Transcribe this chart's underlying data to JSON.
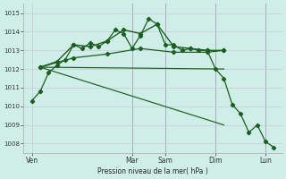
{
  "background_color": "#d0eee8",
  "grid_color": "#c8c8d8",
  "line_color": "#1a5e20",
  "ylabel": "Pression niveau de la mer( hPa )",
  "ylim": [
    1007.5,
    1015.5
  ],
  "yticks": [
    1008,
    1009,
    1010,
    1011,
    1012,
    1013,
    1014,
    1015
  ],
  "day_labels": [
    "Ven",
    "Mar",
    "Sam",
    "Dim",
    "Lun"
  ],
  "day_positions": [
    0,
    12,
    16,
    22,
    28
  ],
  "xlim": [
    -1,
    30
  ],
  "series1_x": [
    0,
    1,
    2,
    3,
    4,
    5,
    6,
    7,
    8,
    9,
    10,
    11,
    12,
    13,
    14,
    15,
    16,
    17,
    18,
    19,
    20,
    21,
    22,
    23,
    24,
    25,
    26,
    27,
    28,
    29
  ],
  "series1_y": [
    1010.3,
    1010.8,
    1011.8,
    1012.2,
    1012.5,
    1013.3,
    1013.1,
    1013.4,
    1013.2,
    1013.5,
    1014.1,
    1013.9,
    1013.1,
    1013.8,
    1014.7,
    1014.4,
    1013.3,
    1013.3,
    1013.0,
    1013.1,
    1013.0,
    1013.0,
    1012.0,
    1011.5,
    1010.1,
    1009.6,
    1008.6,
    1009.0,
    1008.1,
    1007.8
  ],
  "series2_x": [
    1,
    3,
    5,
    7,
    9,
    11,
    13,
    15,
    17,
    19,
    21,
    23
  ],
  "series2_y": [
    1012.1,
    1012.4,
    1013.3,
    1013.2,
    1013.5,
    1014.1,
    1013.9,
    1014.4,
    1013.2,
    1013.1,
    1013.0,
    1013.0
  ],
  "series3_x": [
    1,
    5,
    9,
    13,
    17,
    21,
    23
  ],
  "series3_y": [
    1012.1,
    1012.6,
    1012.8,
    1013.1,
    1012.9,
    1012.9,
    1013.0
  ],
  "series4_x": [
    1,
    23
  ],
  "series4_y": [
    1012.1,
    1012.0
  ],
  "series5_x": [
    1,
    23
  ],
  "series5_y": [
    1012.1,
    1009.0
  ],
  "vline_positions": [
    12,
    16,
    22,
    28
  ],
  "vline_color": "#666688"
}
